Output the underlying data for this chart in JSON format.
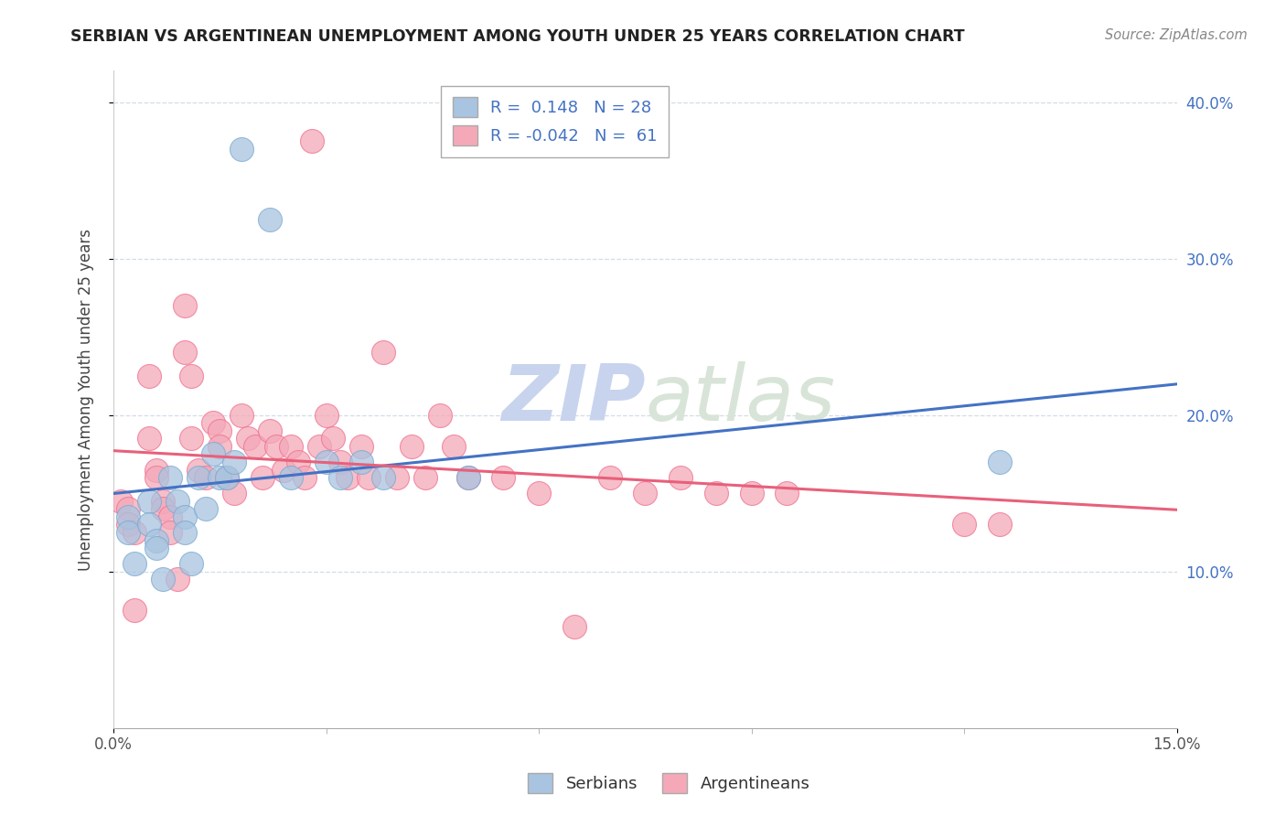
{
  "title": "SERBIAN VS ARGENTINEAN UNEMPLOYMENT AMONG YOUTH UNDER 25 YEARS CORRELATION CHART",
  "source": "Source: ZipAtlas.com",
  "ylabel": "Unemployment Among Youth under 25 years",
  "xlim": [
    0.0,
    0.15
  ],
  "ylim": [
    0.0,
    0.42
  ],
  "legend_labels": [
    "Serbians",
    "Argentineans"
  ],
  "serbian_R": 0.148,
  "serbian_N": 28,
  "argentinean_R": -0.042,
  "argentinean_N": 61,
  "serbian_color": "#a8c4e0",
  "argentinean_color": "#f4a8b8",
  "serbian_edge_color": "#7aaad0",
  "argentinean_edge_color": "#f07090",
  "serbian_line_color": "#4472c4",
  "argentinean_line_color": "#e8607a",
  "watermark_color": "#dce4f0",
  "ytick_positions": [
    0.1,
    0.2,
    0.3,
    0.4
  ],
  "ytick_labels": [
    "10.0%",
    "20.0%",
    "30.0%",
    "40.0%"
  ],
  "serbian_points_x": [
    0.002,
    0.002,
    0.003,
    0.005,
    0.005,
    0.006,
    0.006,
    0.007,
    0.008,
    0.009,
    0.01,
    0.01,
    0.011,
    0.012,
    0.013,
    0.014,
    0.015,
    0.016,
    0.017,
    0.018,
    0.022,
    0.025,
    0.03,
    0.032,
    0.035,
    0.038,
    0.05,
    0.125
  ],
  "serbian_points_y": [
    0.135,
    0.125,
    0.105,
    0.145,
    0.13,
    0.12,
    0.115,
    0.095,
    0.16,
    0.145,
    0.135,
    0.125,
    0.105,
    0.16,
    0.14,
    0.175,
    0.16,
    0.16,
    0.17,
    0.37,
    0.325,
    0.16,
    0.17,
    0.16,
    0.17,
    0.16,
    0.16,
    0.17
  ],
  "argentinean_points_x": [
    0.001,
    0.002,
    0.002,
    0.003,
    0.003,
    0.005,
    0.005,
    0.006,
    0.006,
    0.007,
    0.007,
    0.008,
    0.008,
    0.009,
    0.01,
    0.01,
    0.011,
    0.011,
    0.012,
    0.013,
    0.014,
    0.015,
    0.015,
    0.016,
    0.017,
    0.018,
    0.019,
    0.02,
    0.021,
    0.022,
    0.023,
    0.024,
    0.025,
    0.026,
    0.027,
    0.028,
    0.029,
    0.03,
    0.031,
    0.032,
    0.033,
    0.035,
    0.036,
    0.038,
    0.04,
    0.042,
    0.044,
    0.046,
    0.048,
    0.05,
    0.055,
    0.06,
    0.065,
    0.07,
    0.075,
    0.08,
    0.085,
    0.09,
    0.095,
    0.12,
    0.125
  ],
  "argentinean_points_y": [
    0.145,
    0.14,
    0.13,
    0.125,
    0.075,
    0.225,
    0.185,
    0.165,
    0.16,
    0.145,
    0.14,
    0.135,
    0.125,
    0.095,
    0.27,
    0.24,
    0.225,
    0.185,
    0.165,
    0.16,
    0.195,
    0.19,
    0.18,
    0.16,
    0.15,
    0.2,
    0.185,
    0.18,
    0.16,
    0.19,
    0.18,
    0.165,
    0.18,
    0.17,
    0.16,
    0.375,
    0.18,
    0.2,
    0.185,
    0.17,
    0.16,
    0.18,
    0.16,
    0.24,
    0.16,
    0.18,
    0.16,
    0.2,
    0.18,
    0.16,
    0.16,
    0.15,
    0.065,
    0.16,
    0.15,
    0.16,
    0.15,
    0.15,
    0.15,
    0.13,
    0.13
  ]
}
